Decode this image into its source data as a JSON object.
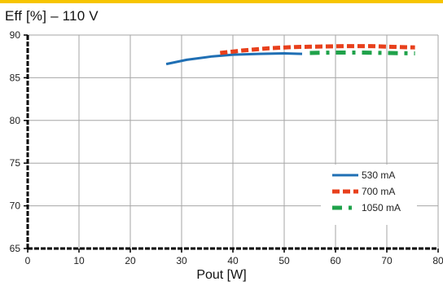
{
  "chart_data": {
    "type": "line",
    "title": "Eff [%] – 110 V",
    "xlabel": "Pout [W]",
    "ylabel": "",
    "xlim": [
      0,
      80
    ],
    "ylim": [
      65,
      90
    ],
    "xticks": [
      0,
      10,
      20,
      30,
      40,
      50,
      60,
      70,
      80
    ],
    "yticks": [
      65,
      70,
      75,
      80,
      85,
      90
    ],
    "grid": true,
    "legend_position": "bottom-right",
    "series": [
      {
        "name": "530 mA",
        "color": "#1f6fb4",
        "style": "solid",
        "x": [
          27,
          31,
          36,
          40,
          45,
          50,
          53.5
        ],
        "y": [
          86.6,
          87.1,
          87.5,
          87.7,
          87.8,
          87.85,
          87.8
        ]
      },
      {
        "name": "700 mA",
        "color": "#e8401c",
        "style": "dashed",
        "x": [
          37.5,
          42,
          47,
          52,
          57,
          62,
          67,
          72,
          75.5
        ],
        "y": [
          87.9,
          88.2,
          88.45,
          88.6,
          88.65,
          88.7,
          88.7,
          88.6,
          88.55
        ]
      },
      {
        "name": "1050 mA",
        "color": "#1fa24a",
        "style": "dashdot",
        "x": [
          55,
          60,
          65,
          70,
          75.5
        ],
        "y": [
          87.9,
          87.95,
          87.95,
          87.9,
          87.85
        ]
      }
    ]
  }
}
